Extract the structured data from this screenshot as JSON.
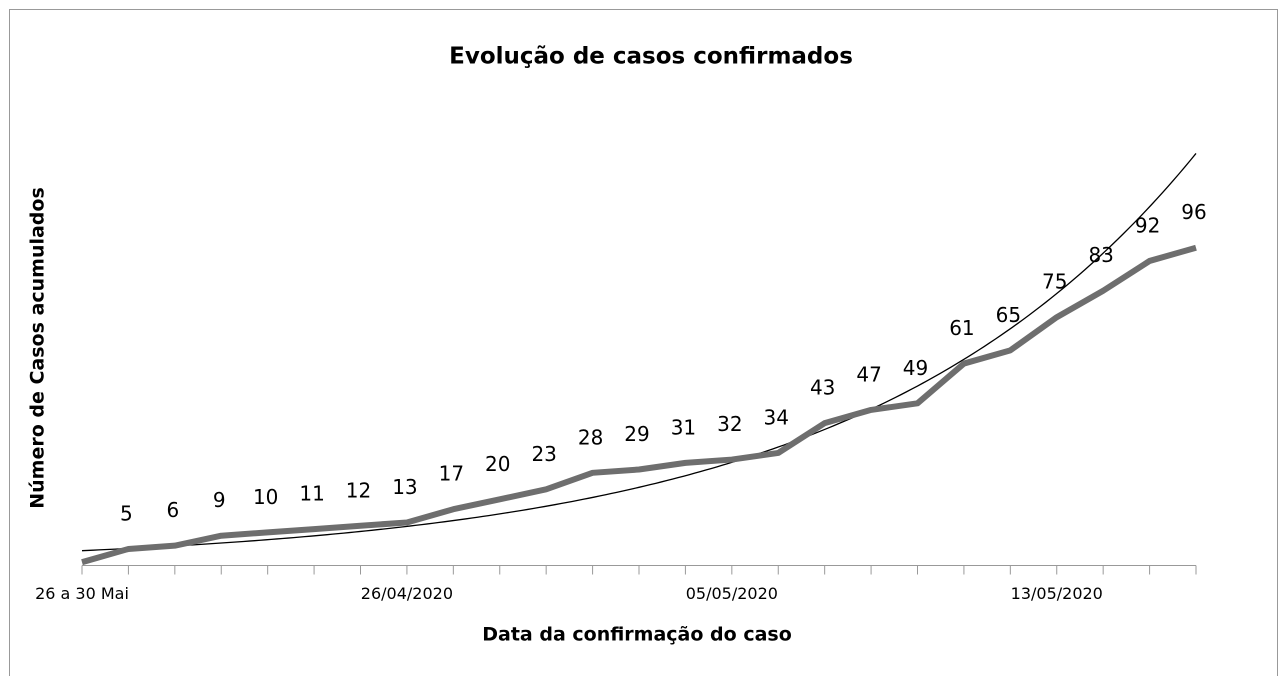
{
  "chart_data": {
    "type": "line",
    "title": "Evolução de casos confirmados",
    "x_label": "Data da confirmação do caso",
    "y_label": "Número de Casos acumulados",
    "categories": [
      "26 a 30 Mai",
      null,
      null,
      null,
      null,
      null,
      null,
      "26/04/2020",
      null,
      null,
      null,
      null,
      null,
      null,
      "05/05/2020",
      null,
      null,
      null,
      null,
      null,
      null,
      "13/05/2020",
      null,
      null,
      null
    ],
    "series": [
      {
        "name": null,
        "color": "#6e6e6e",
        "values": [
          1,
          5,
          6,
          9,
          10,
          11,
          12,
          13,
          17,
          20,
          23,
          28,
          29,
          31,
          32,
          34,
          43,
          47,
          49,
          61,
          65,
          75,
          83,
          92,
          96
        ],
        "value_labels": [
          null,
          "5",
          "6",
          "9",
          "10",
          "11",
          "12",
          "13",
          "17",
          "20",
          "23",
          "28",
          "29",
          "31",
          "32",
          "34",
          "43",
          "47",
          "49",
          "61",
          "65",
          "75",
          "83",
          "92",
          "96"
        ]
      }
    ],
    "trendline": {
      "type": "exponential",
      "color": "#000000"
    },
    "ylim": [
      0,
      125
    ]
  }
}
